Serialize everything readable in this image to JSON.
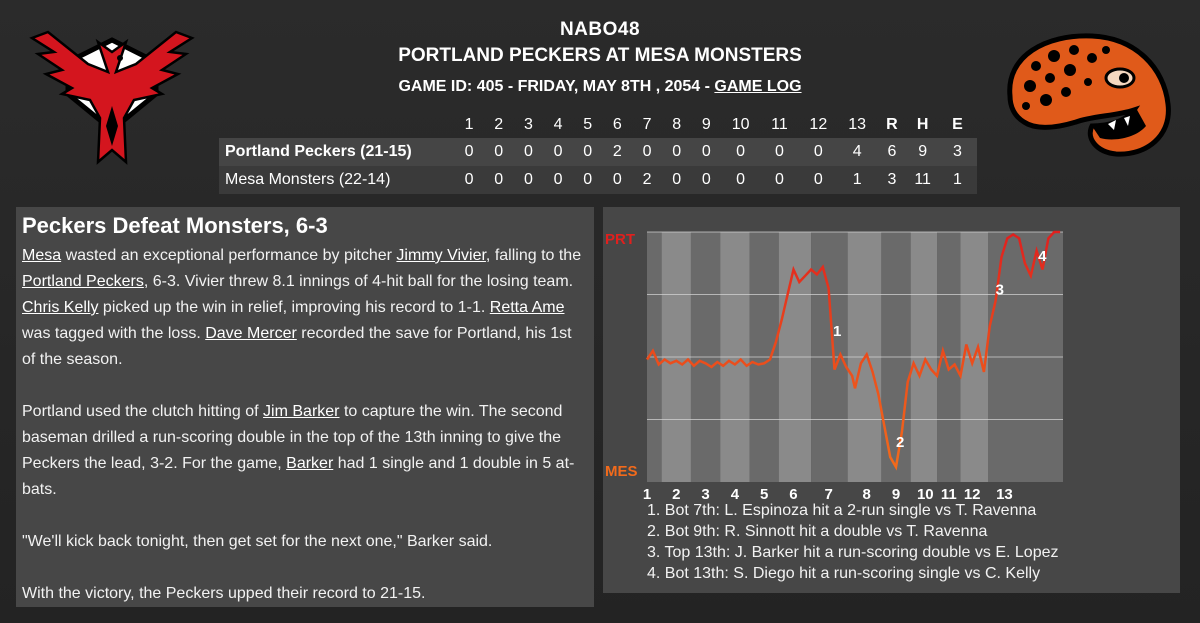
{
  "header": {
    "league": "NABO48",
    "matchup": "PORTLAND PECKERS AT MESA MONSTERS",
    "game_info": "GAME ID: 405 - FRIDAY, MAY 8TH , 2054 - ",
    "game_log_label": "GAME LOG"
  },
  "logos": {
    "away": "portland-peckers-bird-logo",
    "home": "mesa-monsters-gila-logo"
  },
  "linescore": {
    "headers": [
      "1",
      "2",
      "3",
      "4",
      "5",
      "6",
      "7",
      "8",
      "9",
      "10",
      "11",
      "12",
      "13",
      "R",
      "H",
      "E"
    ],
    "rows": [
      {
        "team": "Portland Peckers (21-15)",
        "cells": [
          "0",
          "0",
          "0",
          "0",
          "0",
          "2",
          "0",
          "0",
          "0",
          "0",
          "0",
          "0",
          "4",
          "6",
          "9",
          "3"
        ]
      },
      {
        "team": "Mesa Monsters (22-14)",
        "cells": [
          "0",
          "0",
          "0",
          "0",
          "0",
          "0",
          "2",
          "0",
          "0",
          "0",
          "0",
          "0",
          "1",
          "3",
          "11",
          "1"
        ]
      }
    ]
  },
  "recap": {
    "headline": "Peckers Defeat Monsters, 6-3",
    "p1": {
      "l_mesa": "Mesa",
      "t1": " wasted an exceptional performance by pitcher ",
      "l_vivier": "Jimmy Vivier",
      "t2": ", falling to the ",
      "l_peckers": "Portland Peckers",
      "t3": ", 6-3. Vivier threw 8.1 innings of 4-hit ball for the losing team. ",
      "l_kelly": "Chris Kelly",
      "t4": " picked up the win in relief, improving his record to 1-1. ",
      "l_ame": "Retta Ame",
      "t5": " was tagged with the loss. ",
      "l_mercer": "Dave Mercer",
      "t6": " recorded the save for Portland, his 1st of the season."
    },
    "p2": {
      "t1": "Portland used the clutch hitting of ",
      "l_barker1": "Jim Barker",
      "t2": " to capture the win. The second baseman drilled a run-scoring double in the top of the 13th inning to give the Peckers the lead, 3-2. For the game, ",
      "l_barker2": "Barker",
      "t3": " had 1 single and 1 double in 5 at-bats."
    },
    "p3": "\"We'll kick back tonight, then get set for the next one,\" Barker said.",
    "p4": "With the victory, the Peckers upped their record to 21-15."
  },
  "chart_data": {
    "type": "line",
    "title": "",
    "top_label": "PRT",
    "bottom_label": "MES",
    "ylim": [
      -1,
      1
    ],
    "x_tick_labels": [
      "1",
      "2",
      "3",
      "4",
      "5",
      "6",
      "7",
      "8",
      "9",
      "10",
      "11",
      "12",
      "13"
    ],
    "x_tick_positions": [
      0,
      1,
      2,
      3,
      4,
      5,
      6.2,
      7.5,
      8.5,
      9.5,
      10.3,
      11.1,
      12.2
    ],
    "xlim": [
      0,
      14.2
    ],
    "series": [
      {
        "x": [
          0,
          0.2,
          0.4,
          0.6,
          0.8,
          1,
          1.2,
          1.4,
          1.6,
          1.8,
          2,
          2.2,
          2.4,
          2.6,
          2.8,
          3,
          3.2,
          3.4,
          3.6,
          3.8,
          4,
          4.2,
          4.4,
          4.6,
          4.8,
          5,
          5.2,
          5.4,
          5.6,
          5.8,
          6,
          6.2,
          6.4,
          6.6,
          6.8,
          7,
          7.1,
          7.3,
          7.5,
          7.7,
          7.9,
          8.1,
          8.3,
          8.5,
          8.7,
          8.9,
          9.1,
          9.2,
          9.3,
          9.5,
          9.7,
          9.9,
          10.1,
          10.3,
          10.5,
          10.7,
          10.9,
          11.1,
          11.3,
          11.5,
          11.7,
          11.9,
          12.1,
          12.3,
          12.5,
          12.7,
          12.9,
          13.1,
          13.3,
          13.5,
          13.7,
          13.9,
          14.1
        ],
        "y": [
          -0.02,
          0.05,
          -0.06,
          -0.02,
          -0.05,
          -0.03,
          -0.06,
          -0.02,
          -0.07,
          -0.03,
          -0.05,
          -0.08,
          -0.04,
          -0.07,
          -0.03,
          -0.06,
          -0.02,
          -0.07,
          -0.04,
          -0.06,
          -0.05,
          -0.02,
          0.12,
          0.3,
          0.5,
          0.7,
          0.6,
          0.65,
          0.7,
          0.66,
          0.72,
          0.55,
          -0.1,
          0.02,
          -0.08,
          -0.15,
          -0.25,
          -0.05,
          0.02,
          -0.12,
          -0.3,
          -0.55,
          -0.8,
          -0.88,
          -0.6,
          -0.2,
          -0.05,
          -0.1,
          -0.15,
          -0.02,
          -0.1,
          -0.15,
          0.05,
          -0.1,
          -0.06,
          -0.15,
          0.1,
          -0.05,
          0.08,
          -0.12,
          0.25,
          0.45,
          0.8,
          0.95,
          0.98,
          0.95,
          0.75,
          0.65,
          0.85,
          0.7,
          0.95,
          1.0,
          1.0
        ]
      }
    ],
    "annotations": [
      {
        "label": "1",
        "x": 6.35,
        "y": 0.17
      },
      {
        "label": "2",
        "x": 8.5,
        "y": -0.72
      },
      {
        "label": "3",
        "x": 11.9,
        "y": 0.5
      },
      {
        "label": "4",
        "x": 13.35,
        "y": 0.77
      }
    ],
    "events": [
      "1. Bot 7th: L. Espinoza hit a 2-run single vs T. Ravenna",
      "2. Bot 9th: R. Sinnott hit a double vs T. Ravenna",
      "3. Top 13th: J. Barker hit a run-scoring double vs E. Lopez",
      "4. Bot 13th: S. Diego hit a run-scoring single vs C. Kelly"
    ],
    "colors": {
      "portland": "#e0201e",
      "mesa": "#f26a1b",
      "band_dark": "#6a6a6a",
      "band_light": "#8a8a8a"
    }
  }
}
